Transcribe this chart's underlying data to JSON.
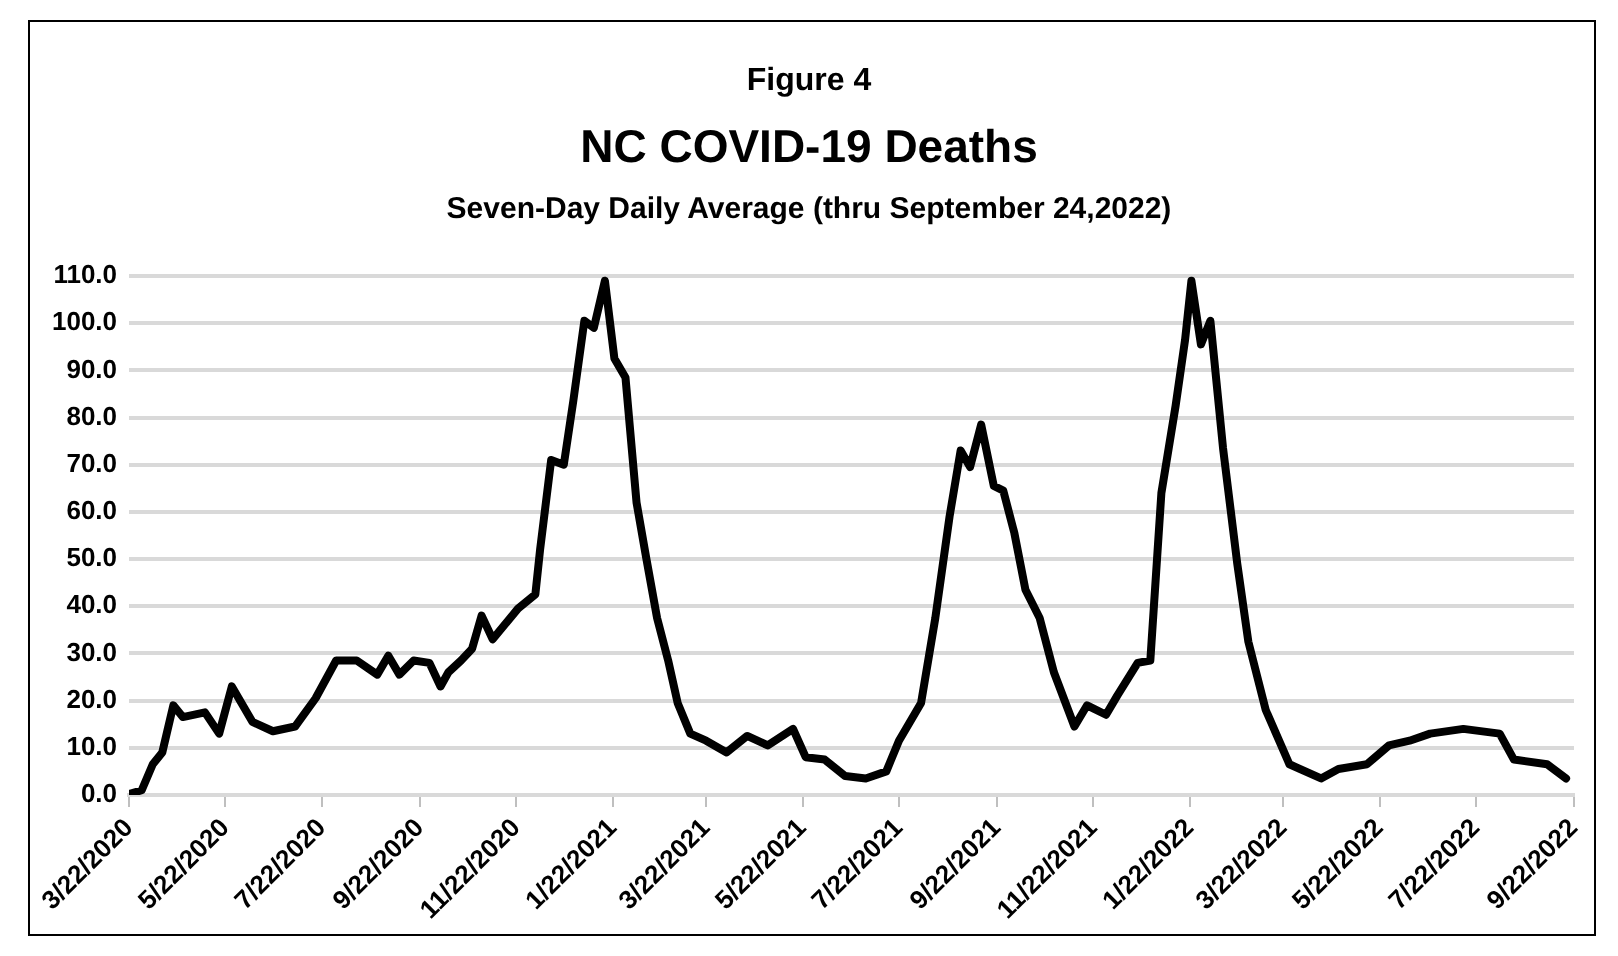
{
  "chart_data": {
    "type": "line",
    "title": "NC COVID-19 Deaths",
    "subtitle": "Seven-Day Daily Average (thru September 24,2022)",
    "annotations": [
      "Figure 4"
    ],
    "x": [
      "2020-03-23",
      "2020-03-30",
      "2020-04-06",
      "2020-04-12",
      "2020-04-19",
      "2020-04-25",
      "2020-05-09",
      "2020-05-18",
      "2020-05-26",
      "2020-06-08",
      "2020-06-21",
      "2020-07-05",
      "2020-07-18",
      "2020-07-31",
      "2020-08-13",
      "2020-08-26",
      "2020-09-02",
      "2020-09-09",
      "2020-09-18",
      "2020-09-28",
      "2020-10-05",
      "2020-10-10",
      "2020-10-18",
      "2020-10-25",
      "2020-10-31",
      "2020-11-07",
      "2020-11-23",
      "2020-12-04",
      "2020-12-07",
      "2020-12-14",
      "2020-12-22",
      "2020-12-28",
      "2021-01-04",
      "2021-01-10",
      "2021-01-17",
      "2021-01-23",
      "2021-01-30",
      "2021-02-06",
      "2021-02-12",
      "2021-02-19",
      "2021-02-26",
      "2021-03-04",
      "2021-03-12",
      "2021-03-22",
      "2021-04-04",
      "2021-04-17",
      "2021-04-30",
      "2021-05-16",
      "2021-05-24",
      "2021-06-05",
      "2021-06-18",
      "2021-07-01",
      "2021-07-14",
      "2021-07-22",
      "2021-08-05",
      "2021-08-14",
      "2021-08-23",
      "2021-08-30",
      "2021-09-05",
      "2021-09-12",
      "2021-09-20",
      "2021-09-26",
      "2021-10-03",
      "2021-10-10",
      "2021-10-19",
      "2021-10-28",
      "2021-11-10",
      "2021-11-18",
      "2021-11-30",
      "2021-12-07",
      "2021-12-20",
      "2021-12-28",
      "2022-01-04",
      "2022-01-13",
      "2022-01-19",
      "2022-01-23",
      "2022-01-29",
      "2022-02-04",
      "2022-02-12",
      "2022-02-21",
      "2022-02-28",
      "2022-03-11",
      "2022-03-26",
      "2022-04-15",
      "2022-04-26",
      "2022-05-14",
      "2022-05-28",
      "2022-06-10",
      "2022-06-23",
      "2022-07-14",
      "2022-08-06",
      "2022-08-15",
      "2022-09-05",
      "2022-09-17"
    ],
    "series": [
      {
        "color": "#000000",
        "values": [
          0.3,
          1,
          6.5,
          9,
          19,
          16.5,
          17.5,
          13,
          23,
          15.5,
          13.5,
          14.5,
          20.5,
          28.5,
          28.5,
          25.5,
          29.5,
          25.5,
          28.5,
          28,
          23,
          26,
          28.5,
          31,
          38,
          33,
          39.5,
          42.5,
          52,
          71,
          70,
          83.5,
          100.5,
          99,
          109,
          92.5,
          88.5,
          62,
          50.5,
          37.5,
          28.5,
          19.5,
          13,
          11.5,
          9,
          12.5,
          10.5,
          14,
          8,
          7.5,
          4,
          3.5,
          5,
          11.5,
          19.5,
          37.5,
          59,
          73,
          69.5,
          78.5,
          65.5,
          64.5,
          55.5,
          43.5,
          37.5,
          26,
          14.5,
          19,
          17,
          21,
          28,
          28.5,
          64,
          82.5,
          96.5,
          109,
          95.5,
          100.5,
          73.5,
          49,
          32.5,
          18,
          6.5,
          3.5,
          5.5,
          6.5,
          10.5,
          11.5,
          13,
          14,
          13,
          7.5,
          6.5,
          3.5
        ]
      }
    ],
    "xlim": [
      "2020-03-22",
      "2022-09-22"
    ],
    "xticks": [
      {
        "value": "2020-03-22",
        "label": "3/22/2020"
      },
      {
        "value": "2020-05-22",
        "label": "5/22/2020"
      },
      {
        "value": "2020-07-22",
        "label": "7/22/2020"
      },
      {
        "value": "2020-09-22",
        "label": "9/22/2020"
      },
      {
        "value": "2020-11-22",
        "label": "11/22/2020"
      },
      {
        "value": "2021-01-22",
        "label": "1/22/2021"
      },
      {
        "value": "2021-03-22",
        "label": "3/22/2021"
      },
      {
        "value": "2021-05-22",
        "label": "5/22/2021"
      },
      {
        "value": "2021-07-22",
        "label": "7/22/2021"
      },
      {
        "value": "2021-09-22",
        "label": "9/22/2021"
      },
      {
        "value": "2021-11-22",
        "label": "11/22/2021"
      },
      {
        "value": "2022-01-22",
        "label": "1/22/2022"
      },
      {
        "value": "2022-03-22",
        "label": "3/22/2022"
      },
      {
        "value": "2022-05-22",
        "label": "5/22/2022"
      },
      {
        "value": "2022-07-22",
        "label": "7/22/2022"
      },
      {
        "value": "2022-09-22",
        "label": "9/22/2022"
      }
    ],
    "ylim": [
      0,
      110
    ],
    "yticks": [
      {
        "value": 0,
        "label": "0.0"
      },
      {
        "value": 10,
        "label": "10.0"
      },
      {
        "value": 20,
        "label": "20.0"
      },
      {
        "value": 30,
        "label": "30.0"
      },
      {
        "value": 40,
        "label": "40.0"
      },
      {
        "value": 50,
        "label": "50.0"
      },
      {
        "value": 60,
        "label": "60.0"
      },
      {
        "value": 70,
        "label": "70.0"
      },
      {
        "value": 80,
        "label": "80.0"
      },
      {
        "value": 90,
        "label": "90.0"
      },
      {
        "value": 100,
        "label": "100.0"
      },
      {
        "value": 110,
        "label": "110.0"
      }
    ],
    "grid": "y",
    "legend": false,
    "marker": "none",
    "line_style": "solid"
  }
}
